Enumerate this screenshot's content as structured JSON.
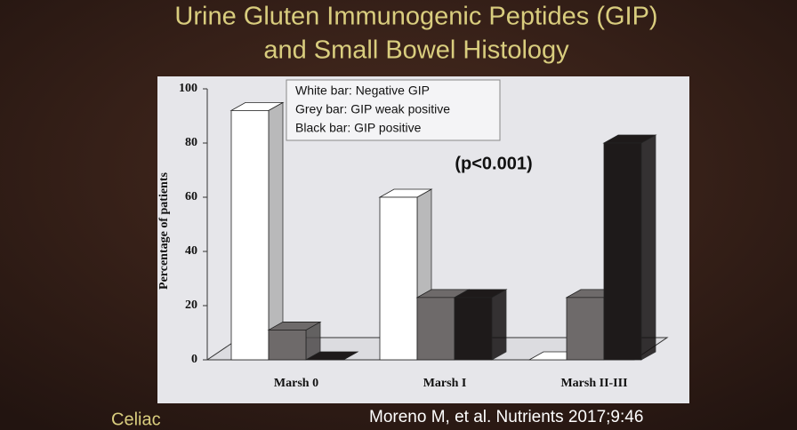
{
  "chart_data": {
    "type": "bar3d",
    "title": "Urine Gluten Immunogenic Peptides (GIP)",
    "subtitle": "and Small Bowel Histology",
    "ylabel": "Percentage of patients",
    "annotation": "(p<0.001)",
    "categories": [
      "Marsh 0",
      "Marsh I",
      "Marsh II-III"
    ],
    "series": [
      {
        "name": "White bar: Negative GIP",
        "color": "#ffffff",
        "values": [
          92,
          60,
          0
        ]
      },
      {
        "name": "Grey bar: GIP weak positive",
        "color": "#6e6a6a",
        "values": [
          11,
          23,
          23
        ]
      },
      {
        "name": "Black bar: GIP positive",
        "color": "#1e1a1a",
        "values": [
          0,
          23,
          80
        ]
      }
    ],
    "ylim": [
      0,
      100
    ],
    "yticks": [
      0,
      20,
      40,
      60,
      80,
      100
    ],
    "grid": false
  },
  "footer": {
    "left": "Celiac",
    "citation": "Moreno M, et al.  Nutrients 2017;9:46"
  }
}
